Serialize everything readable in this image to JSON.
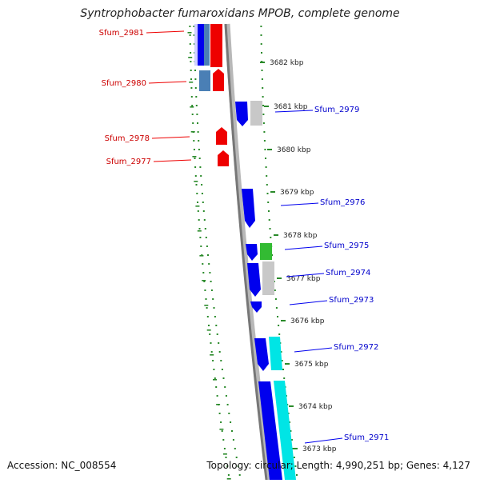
{
  "title": "Syntrophobacter fumaroxidans MPOB, complete genome",
  "accession": "Accession: NC_008554",
  "summary": "Topology: circular; Length: 4,990,251 bp; Genes: 4,127",
  "colors": {
    "reverse_gene": "#ee0000",
    "forward_gene": "#0000ee",
    "reverse_label": "#cc0000",
    "forward_label": "#0000cc",
    "steel": "#4a7fb5",
    "gray_feature": "#c8c8c8",
    "green_feature": "#33bb33",
    "cyan_feature": "#00e5e5",
    "backbone": "#7a7a7a",
    "tick": "#2a8a2a"
  },
  "ticks": [
    {
      "label": "3682 kbp"
    },
    {
      "label": "3681 kbp"
    },
    {
      "label": "3680 kbp"
    },
    {
      "label": "3679 kbp"
    },
    {
      "label": "3678 kbp"
    },
    {
      "label": "3677 kbp"
    },
    {
      "label": "3676 kbp"
    },
    {
      "label": "3675 kbp"
    },
    {
      "label": "3674 kbp"
    },
    {
      "label": "3673 kbp"
    }
  ],
  "genes_reverse": [
    {
      "label": "Sfum_2981"
    },
    {
      "label": "Sfum_2980"
    },
    {
      "label": "Sfum_2978"
    },
    {
      "label": "Sfum_2977"
    }
  ],
  "genes_forward": [
    {
      "label": "Sfum_2979"
    },
    {
      "label": "Sfum_2976"
    },
    {
      "label": "Sfum_2975"
    },
    {
      "label": "Sfum_2974"
    },
    {
      "label": "Sfum_2973"
    },
    {
      "label": "Sfum_2972"
    },
    {
      "label": "Sfum_2971"
    }
  ]
}
